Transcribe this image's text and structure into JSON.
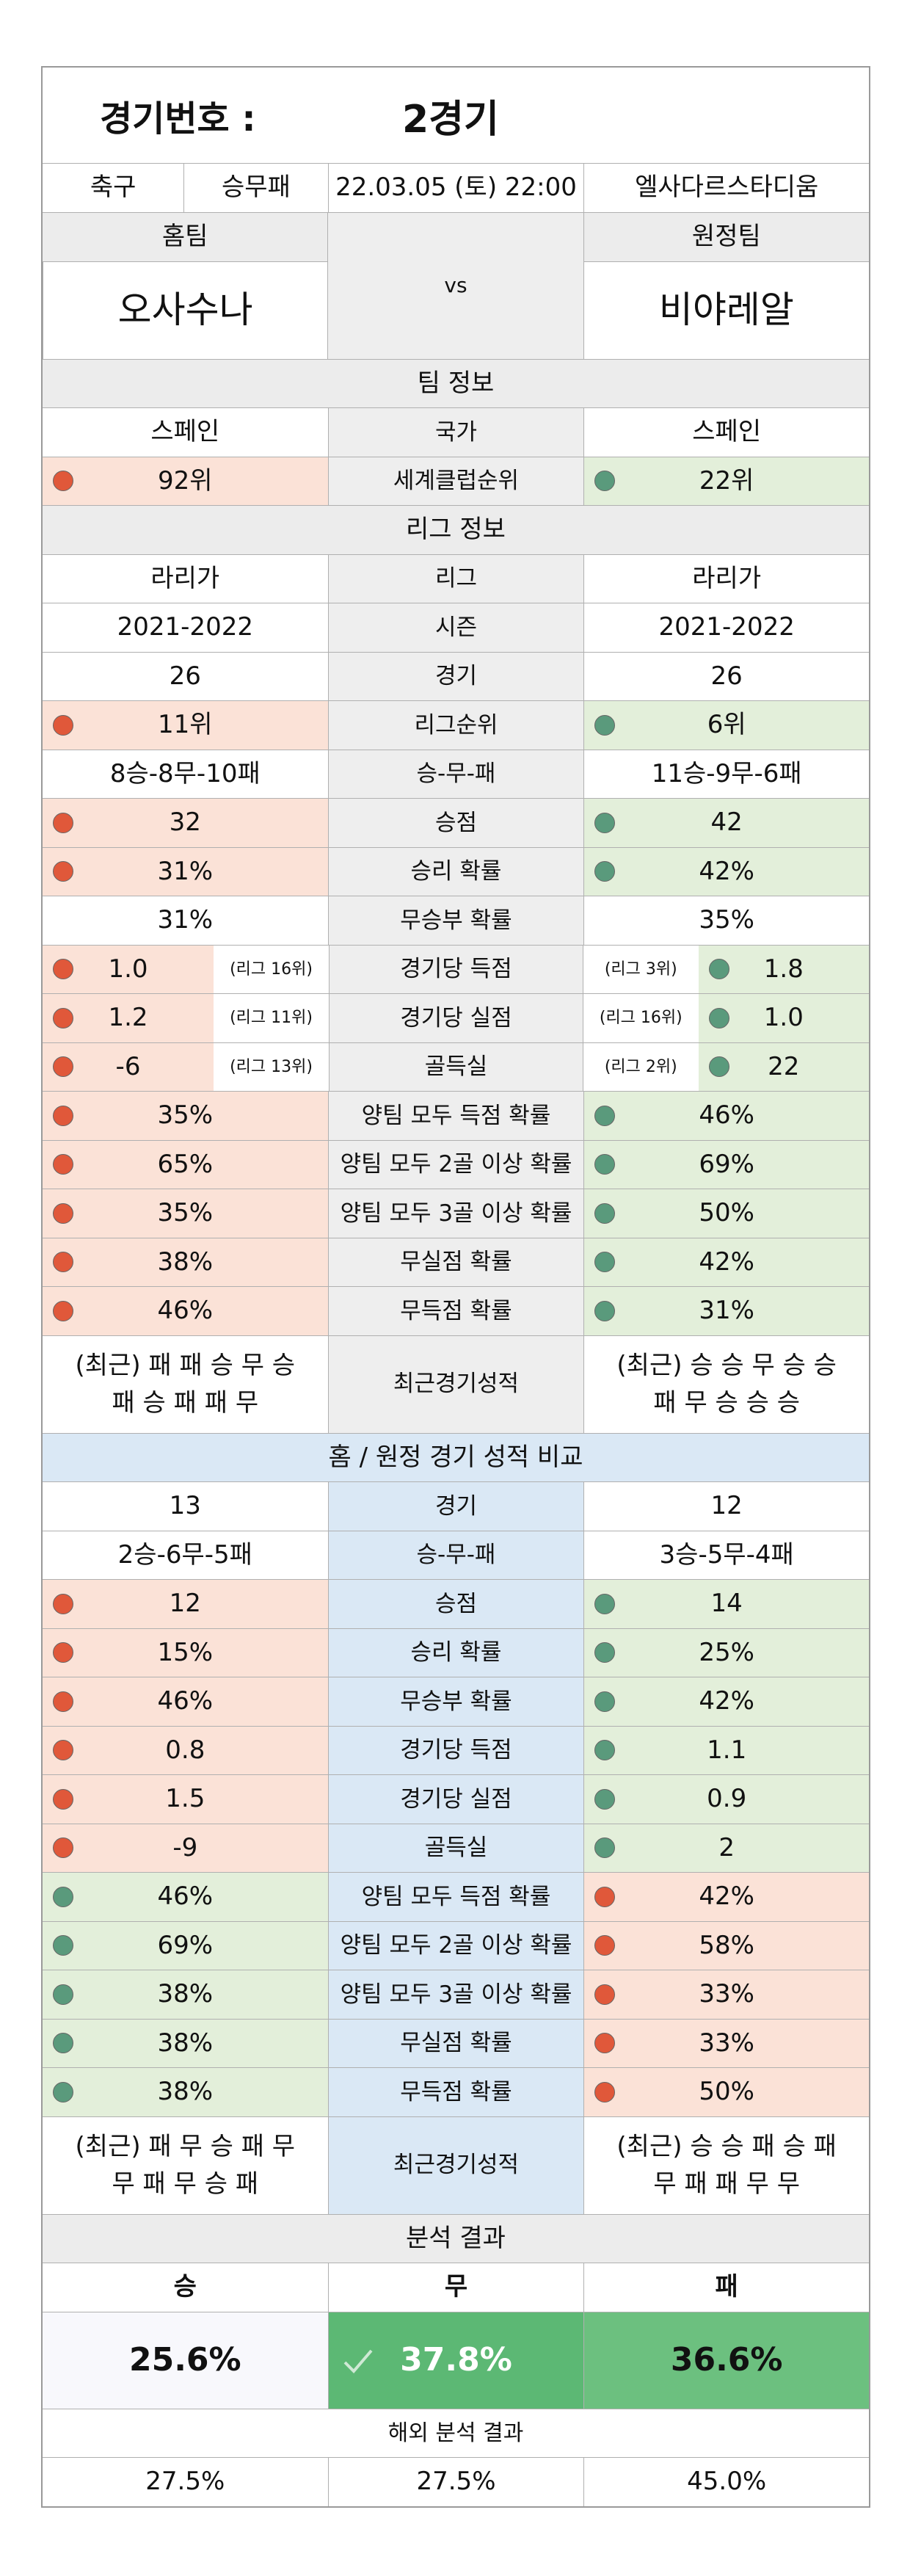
{
  "header": {
    "label": "경기번호 :",
    "game": "2경기"
  },
  "info": [
    "축구",
    "승무패",
    "22.03.05 (토) 22:00",
    "엘사다르스타디움"
  ],
  "teams": {
    "home_label": "홈팀",
    "away_label": "원정팀",
    "vs": "vs",
    "home": "오사수나",
    "away": "비야레알"
  },
  "sections": [
    {
      "title": "팀 정보",
      "rows": [
        {
          "home": "스페인",
          "label": "국가",
          "away": "스페인"
        },
        {
          "home": "92위",
          "label": "세계클럽순위",
          "away": "22위",
          "home_dot": "#e0583a",
          "away_dot": "#5a9a7c"
        }
      ]
    },
    {
      "title": "리그 정보",
      "rows": [
        {
          "home": "라리가",
          "label": "리그",
          "away": "라리가"
        },
        {
          "home": "2021-2022",
          "label": "시즌",
          "away": "2021-2022"
        },
        {
          "home": "26",
          "label": "경기",
          "away": "26"
        },
        {
          "home": "11위",
          "label": "리그순위",
          "away": "6위",
          "home_dot": "#e0583a",
          "away_dot": "#5a9a7c"
        },
        {
          "home": "8승-8무-10패",
          "label": "승-무-패",
          "away": "11승-9무-6패"
        },
        {
          "home": "32",
          "label": "승점",
          "away": "42",
          "home_dot": "#e0583a",
          "away_dot": "#5a9a7c"
        },
        {
          "home": "31%",
          "label": "승리 확률",
          "away": "42%",
          "home_dot": "#e0583a",
          "away_dot": "#5a9a7c"
        },
        {
          "home": "31%",
          "label": "무승부 확률",
          "away": "35%"
        },
        {
          "home": "1.0",
          "label": "경기당 득점",
          "away": "1.8",
          "home_dot": "#e0583a",
          "away_dot": "#5a9a7c",
          "home_note": "(리그 16위)",
          "away_note": "(리그 3위)"
        },
        {
          "home": "1.2",
          "label": "경기당 실점",
          "away": "1.0",
          "home_dot": "#e0583a",
          "away_dot": "#5a9a7c",
          "home_note": "(리그 11위)",
          "away_note": "(리그 16위)"
        },
        {
          "home": "-6",
          "label": "골득실",
          "away": "22",
          "home_dot": "#e0583a",
          "away_dot": "#5a9a7c",
          "home_note": "(리그 13위)",
          "away_note": "(리그 2위)"
        },
        {
          "home": "35%",
          "label": "양팀 모두 득점 확률",
          "away": "46%",
          "home_dot": "#e0583a",
          "away_dot": "#5a9a7c"
        },
        {
          "home": "65%",
          "label": "양팀 모두 2골 이상 확률",
          "away": "69%",
          "home_dot": "#e0583a",
          "away_dot": "#5a9a7c"
        },
        {
          "home": "35%",
          "label": "양팀 모두 3골 이상 확률",
          "away": "50%",
          "home_dot": "#e0583a",
          "away_dot": "#5a9a7c"
        },
        {
          "home": "38%",
          "label": "무실점 확률",
          "away": "42%",
          "home_dot": "#e0583a",
          "away_dot": "#5a9a7c"
        },
        {
          "home": "46%",
          "label": "무득점 확률",
          "away": "31%",
          "home_dot": "#e0583a",
          "away_dot": "#5a9a7c"
        },
        {
          "home": "(최근) 패 패 승 무 승\n패 승 패 패 무",
          "label": "최근경기성적",
          "away": "(최근) 승 승 무 승 승\n패 무 승 승 승"
        }
      ]
    },
    {
      "title": "홈 / 원정 경기 성적 비교",
      "rows": [
        {
          "home": "13",
          "label": "경기",
          "away": "12"
        },
        {
          "home": "2승-6무-5패",
          "label": "승-무-패",
          "away": "3승-5무-4패"
        },
        {
          "home": "12",
          "label": "승점",
          "away": "14",
          "home_dot": "#e0583a",
          "away_dot": "#5a9a7c"
        },
        {
          "home": "15%",
          "label": "승리 확률",
          "away": "25%",
          "home_dot": "#e0583a",
          "away_dot": "#5a9a7c"
        },
        {
          "home": "46%",
          "label": "무승부 확률",
          "away": "42%",
          "home_dot": "#e0583a",
          "away_dot": "#5a9a7c"
        },
        {
          "home": "0.8",
          "label": "경기당 득점",
          "away": "1.1",
          "home_dot": "#e0583a",
          "away_dot": "#5a9a7c"
        },
        {
          "home": "1.5",
          "label": "경기당 실점",
          "away": "0.9",
          "home_dot": "#e0583a",
          "away_dot": "#5a9a7c"
        },
        {
          "home": "-9",
          "label": "골득실",
          "away": "2",
          "home_dot": "#e0583a",
          "away_dot": "#5a9a7c"
        },
        {
          "home": "46%",
          "label": "양팀 모두 득점 확률",
          "away": "42%",
          "home_dot": "#5a9a7c",
          "away_dot": "#e0583a"
        },
        {
          "home": "69%",
          "label": "양팀 모두 2골 이상 확률",
          "away": "58%",
          "home_dot": "#5a9a7c",
          "away_dot": "#e0583a"
        },
        {
          "home": "38%",
          "label": "양팀 모두 3골 이상 확률",
          "away": "33%",
          "home_dot": "#5a9a7c",
          "away_dot": "#e0583a"
        },
        {
          "home": "38%",
          "label": "무실점 확률",
          "away": "33%",
          "home_dot": "#5a9a7c",
          "away_dot": "#e0583a"
        },
        {
          "home": "38%",
          "label": "무득점 확률",
          "away": "50%",
          "home_dot": "#5a9a7c",
          "away_dot": "#e0583a"
        },
        {
          "home": "(최근) 패 무 승 패 무\n무 패 무 승 패",
          "label": "최근경기성적",
          "away": "(최근) 승 승 패 승 패\n무 패 패 무 무"
        }
      ]
    }
  ],
  "analysis": {
    "title": "분석 결과",
    "labels": [
      "승",
      "무",
      "패"
    ],
    "values": [
      "25.6%",
      "37.8%",
      "36.6%"
    ],
    "overseas_title": "해외 분석 결과",
    "overseas": [
      "27.5%",
      "27.5%",
      "45.0%"
    ]
  }
}
